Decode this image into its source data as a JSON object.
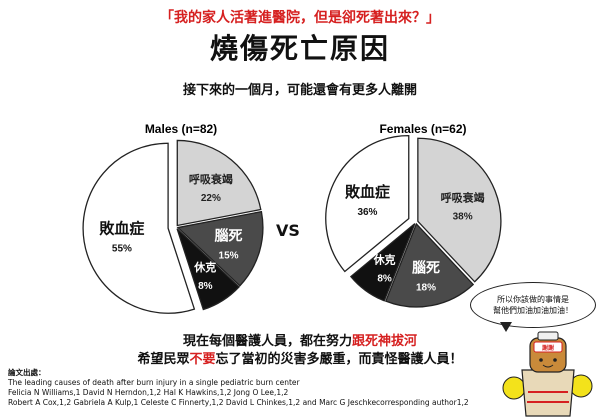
{
  "header": {
    "quote": "「我的家人活著進醫院，但是卻死著出來？」",
    "title": "燒傷死亡原因",
    "subtitle": "接下來的一個月，可能還會有更多人離開"
  },
  "vs_label": "VS",
  "chart_data": [
    {
      "type": "pie",
      "title": "Males (n=82)",
      "slices": [
        {
          "label": "呼吸衰竭",
          "pct_label": "22%",
          "value": 22,
          "color": "#d4d4d4",
          "text_color": "#222"
        },
        {
          "label": "腦死",
          "pct_label": "15%",
          "value": 15,
          "color": "#4a4a4a",
          "text_color": "#fff"
        },
        {
          "label": "休克",
          "pct_label": "8%",
          "value": 8,
          "color": "#111111",
          "text_color": "#fff"
        },
        {
          "label": "敗血症",
          "pct_label": "55%",
          "value": 55,
          "color": "#ffffff",
          "text_color": "#111"
        }
      ]
    },
    {
      "type": "pie",
      "title": "Females (n=62)",
      "slices": [
        {
          "label": "呼吸衰竭",
          "pct_label": "38%",
          "value": 38,
          "color": "#d4d4d4",
          "text_color": "#222"
        },
        {
          "label": "腦死",
          "pct_label": "18%",
          "value": 18,
          "color": "#4a4a4a",
          "text_color": "#fff"
        },
        {
          "label": "休克",
          "pct_label": "8%",
          "value": 8,
          "color": "#111111",
          "text_color": "#fff"
        },
        {
          "label": "敗血症",
          "pct_label": "36%",
          "value": 36,
          "color": "#ffffff",
          "text_color": "#111"
        }
      ]
    }
  ],
  "bottom": {
    "line1_a": "現在每個醫護人員，都在努力",
    "line1_b": "跟死神拔河",
    "line2_a": "希望民眾",
    "line2_b": "不要",
    "line2_c": "忘了當初的災害多嚴重，而責怪醫護人員！"
  },
  "references": {
    "heading": "論文出處：",
    "lines": [
      "The leading causes of death after burn injury in a single pediatric burn center",
      "Felicia N Williams,1 David N Herndon,1,2 Hal K Hawkins,1,2 Jong O Lee,1,2",
      "Robert A Cox,1,2 Gabriela A Kulp,1 Celeste C Finnerty,1,2 David L Chinkes,1,2 and Marc G Jeschkecorresponding author1,2"
    ]
  },
  "bubble": {
    "line1": "所以你該做的事情是",
    "line2": "幫他們加油加油加油！"
  },
  "mascot": {
    "badge": "謝謝"
  }
}
